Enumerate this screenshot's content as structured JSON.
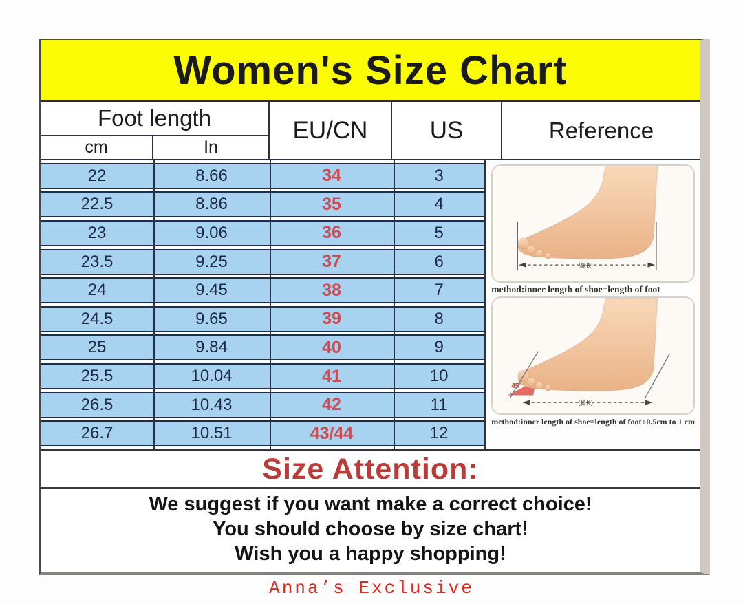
{
  "title": "Women's Size Chart",
  "chart_data": {
    "type": "table",
    "title": "Women's Size Chart",
    "columns": [
      "Foot length cm",
      "Foot length In",
      "EU/CN",
      "US"
    ],
    "rows": [
      [
        "22",
        "8.66",
        "34",
        "3"
      ],
      [
        "22.5",
        "8.86",
        "35",
        "4"
      ],
      [
        "23",
        "9.06",
        "36",
        "5"
      ],
      [
        "23.5",
        "9.25",
        "37",
        "6"
      ],
      [
        "24",
        "9.45",
        "38",
        "7"
      ],
      [
        "24.5",
        "9.65",
        "39",
        "8"
      ],
      [
        "25",
        "9.84",
        "40",
        "9"
      ],
      [
        "25.5",
        "10.04",
        "41",
        "10"
      ],
      [
        "26.5",
        "10.43",
        "42",
        "11"
      ],
      [
        "26.7",
        "10.51",
        "43/44",
        "12"
      ]
    ]
  },
  "header": {
    "foot_length": "Foot length",
    "cm": "cm",
    "inch": "In",
    "eu_cn": "EU/CN",
    "us": "US",
    "reference": "Reference"
  },
  "reference": {
    "figures": [
      {
        "caption": "method:inner length of shoe=length of foot",
        "arrow_label": "(脚长)"
      },
      {
        "caption": "method:inner length of shoe=length of foot+0.5cm to 1 cm",
        "arrow_label": "(脚长)",
        "angle_label": "45°"
      }
    ]
  },
  "attention": {
    "heading": "Size Attention:"
  },
  "notes": [
    "We suggest if you want make a correct choice!",
    "You should choose by size chart!",
    "Wish you a happy shopping!"
  ],
  "brand": "Anna’s Exclusive",
  "colors": {
    "title_bg": "#fcfc04",
    "row_bg": "#a7d2f0",
    "eu_red": "#d04a52",
    "attention_red": "#bb3b38",
    "brand_red": "#e6251d",
    "frame_grey": "#cfc9c0"
  }
}
